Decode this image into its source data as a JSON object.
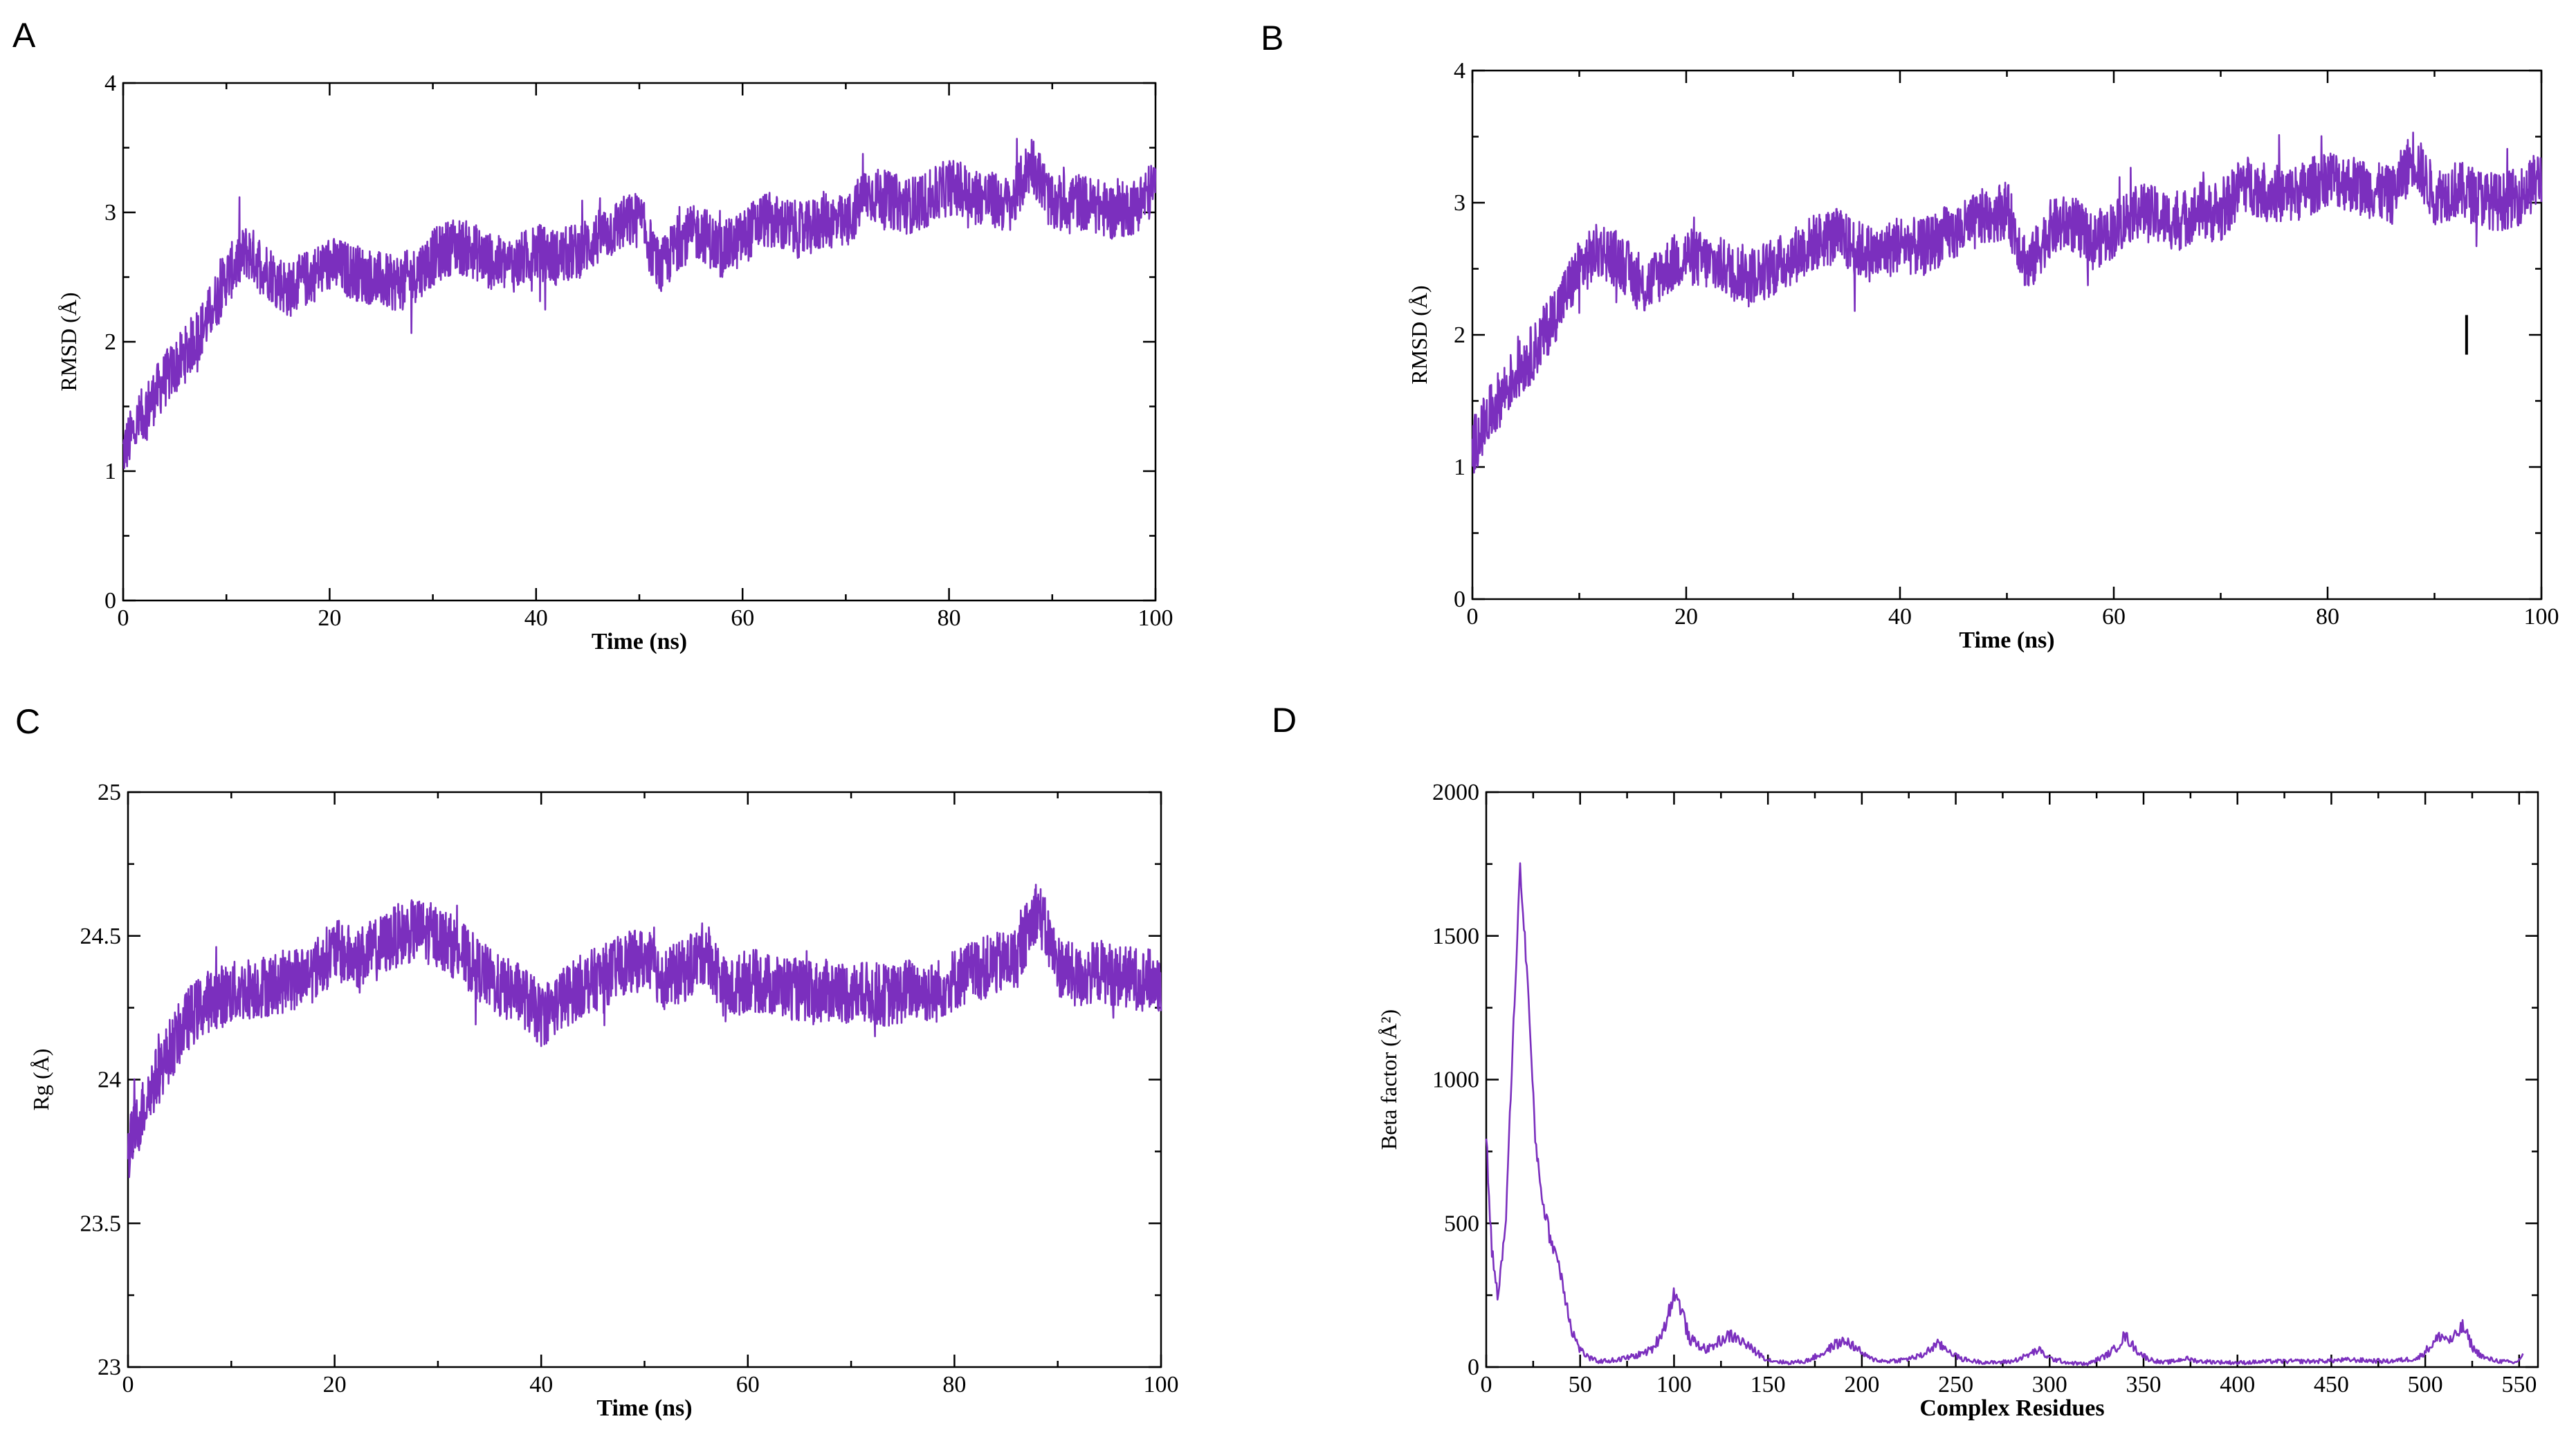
{
  "colors": {
    "series": "#7B2FBE",
    "axis": "#000000"
  },
  "chart_data": [
    {
      "panel": "A",
      "type": "line",
      "xlabel": "Time (ns)",
      "ylabel": "RMSD (Å)",
      "xlim": [
        0,
        100
      ],
      "ylim": [
        0,
        4
      ],
      "xticks": [
        "0",
        "20",
        "40",
        "60",
        "80",
        "100"
      ],
      "yticks": [
        "0",
        "1",
        "2",
        "3",
        "4"
      ],
      "grid": false,
      "series": [
        {
          "name": "RMSD",
          "x": [
            0,
            2,
            4,
            6,
            8,
            10,
            12,
            14,
            16,
            18,
            20,
            22,
            24,
            26,
            28,
            30,
            32,
            34,
            36,
            38,
            40,
            42,
            44,
            46,
            48,
            50,
            52,
            54,
            56,
            58,
            60,
            62,
            64,
            66,
            68,
            70,
            72,
            74,
            76,
            78,
            80,
            82,
            84,
            86,
            88,
            90,
            92,
            94,
            96,
            98,
            100
          ],
          "values": [
            1.15,
            1.45,
            1.7,
            1.9,
            2.15,
            2.5,
            2.7,
            2.55,
            2.4,
            2.5,
            2.6,
            2.55,
            2.5,
            2.45,
            2.5,
            2.65,
            2.75,
            2.7,
            2.6,
            2.6,
            2.7,
            2.65,
            2.7,
            2.8,
            2.9,
            2.95,
            2.55,
            2.8,
            2.85,
            2.7,
            2.8,
            2.95,
            2.9,
            2.85,
            2.95,
            2.9,
            3.15,
            3.1,
            3.05,
            3.1,
            3.2,
            3.15,
            3.1,
            3.05,
            3.4,
            3.05,
            3.1,
            3.05,
            3.0,
            3.05,
            3.2
          ]
        }
      ]
    },
    {
      "panel": "B",
      "type": "line",
      "xlabel": "Time (ns)",
      "ylabel": "RMSD (Å)",
      "xlim": [
        0,
        100
      ],
      "ylim": [
        0,
        4
      ],
      "xticks": [
        "0",
        "20",
        "40",
        "60",
        "80",
        "100"
      ],
      "yticks": [
        "0",
        "1",
        "2",
        "3",
        "4"
      ],
      "grid": false,
      "annotation": "|",
      "series": [
        {
          "name": "RMSD",
          "x": [
            0,
            2,
            4,
            6,
            8,
            10,
            12,
            14,
            16,
            18,
            20,
            22,
            24,
            26,
            28,
            30,
            32,
            34,
            36,
            38,
            40,
            42,
            44,
            46,
            48,
            50,
            52,
            54,
            56,
            58,
            60,
            62,
            64,
            66,
            68,
            70,
            72,
            74,
            76,
            78,
            80,
            82,
            84,
            86,
            88,
            90,
            92,
            94,
            96,
            98,
            100
          ],
          "values": [
            1.15,
            1.45,
            1.7,
            1.9,
            2.2,
            2.5,
            2.65,
            2.55,
            2.35,
            2.5,
            2.6,
            2.55,
            2.5,
            2.45,
            2.5,
            2.6,
            2.7,
            2.75,
            2.65,
            2.6,
            2.7,
            2.65,
            2.75,
            2.8,
            2.9,
            2.95,
            2.5,
            2.8,
            2.85,
            2.7,
            2.8,
            2.95,
            2.9,
            2.85,
            2.95,
            2.9,
            3.15,
            3.1,
            3.05,
            3.1,
            3.2,
            3.15,
            3.1,
            3.05,
            3.35,
            3.05,
            3.1,
            3.05,
            3.0,
            3.05,
            3.2
          ]
        }
      ]
    },
    {
      "panel": "C",
      "type": "line",
      "xlabel": "Time (ns)",
      "ylabel": "Rg (Å)",
      "xlim": [
        0,
        100
      ],
      "ylim": [
        23,
        25
      ],
      "xticks": [
        "0",
        "20",
        "40",
        "60",
        "80",
        "100"
      ],
      "yticks": [
        "23",
        "23.5",
        "24",
        "24.5",
        "25"
      ],
      "grid": false,
      "series": [
        {
          "name": "Rg",
          "x": [
            0,
            2,
            4,
            6,
            8,
            10,
            12,
            14,
            16,
            18,
            20,
            22,
            24,
            26,
            28,
            30,
            32,
            34,
            36,
            38,
            40,
            42,
            44,
            46,
            48,
            50,
            52,
            54,
            56,
            58,
            60,
            62,
            64,
            66,
            68,
            70,
            72,
            74,
            76,
            78,
            80,
            82,
            84,
            86,
            88,
            90,
            92,
            94,
            96,
            98,
            100
          ],
          "values": [
            23.75,
            23.95,
            24.1,
            24.22,
            24.28,
            24.3,
            24.32,
            24.33,
            24.35,
            24.38,
            24.45,
            24.42,
            24.45,
            24.5,
            24.52,
            24.5,
            24.45,
            24.38,
            24.32,
            24.3,
            24.22,
            24.28,
            24.33,
            24.36,
            24.4,
            24.42,
            24.35,
            24.38,
            24.45,
            24.3,
            24.35,
            24.33,
            24.32,
            24.3,
            24.31,
            24.3,
            24.3,
            24.29,
            24.32,
            24.3,
            24.35,
            24.38,
            24.4,
            24.42,
            24.6,
            24.4,
            24.35,
            24.38,
            24.36,
            24.35,
            24.34
          ]
        }
      ]
    },
    {
      "panel": "D",
      "type": "line",
      "xlabel": "Complex Residues",
      "ylabel": "Beta factor (Å²)",
      "xlim": [
        0,
        560
      ],
      "ylim": [
        0,
        2000
      ],
      "xticks": [
        "0",
        "50",
        "100",
        "150",
        "200",
        "250",
        "300",
        "350",
        "400",
        "450",
        "500",
        "550"
      ],
      "yticks": [
        "0",
        "500",
        "1000",
        "1500",
        "2000"
      ],
      "grid": false,
      "series": [
        {
          "name": "Beta factor",
          "x": [
            0,
            3,
            6,
            10,
            14,
            18,
            22,
            26,
            30,
            34,
            38,
            42,
            46,
            50,
            55,
            60,
            70,
            80,
            88,
            92,
            96,
            100,
            104,
            108,
            112,
            118,
            124,
            130,
            136,
            142,
            150,
            160,
            170,
            180,
            186,
            192,
            198,
            204,
            212,
            222,
            232,
            240,
            246,
            252,
            260,
            270,
            280,
            288,
            294,
            300,
            310,
            320,
            330,
            336,
            340,
            346,
            352,
            360,
            366,
            372,
            380,
            400,
            420,
            440,
            460,
            480,
            496,
            504,
            508,
            514,
            520,
            526,
            532,
            540,
            548,
            552
          ],
          "values": [
            800,
            400,
            260,
            450,
            1100,
            1740,
            1350,
            800,
            580,
            450,
            380,
            250,
            120,
            60,
            30,
            20,
            25,
            40,
            60,
            100,
            160,
            260,
            200,
            100,
            80,
            60,
            90,
            110,
            90,
            60,
            25,
            15,
            20,
            50,
            80,
            90,
            60,
            30,
            20,
            25,
            40,
            80,
            60,
            30,
            20,
            15,
            20,
            40,
            60,
            30,
            15,
            10,
            40,
            70,
            110,
            60,
            30,
            15,
            20,
            30,
            20,
            15,
            20,
            20,
            25,
            20,
            30,
            80,
            110,
            90,
            140,
            60,
            30,
            20,
            15,
            40
          ]
        }
      ]
    }
  ]
}
